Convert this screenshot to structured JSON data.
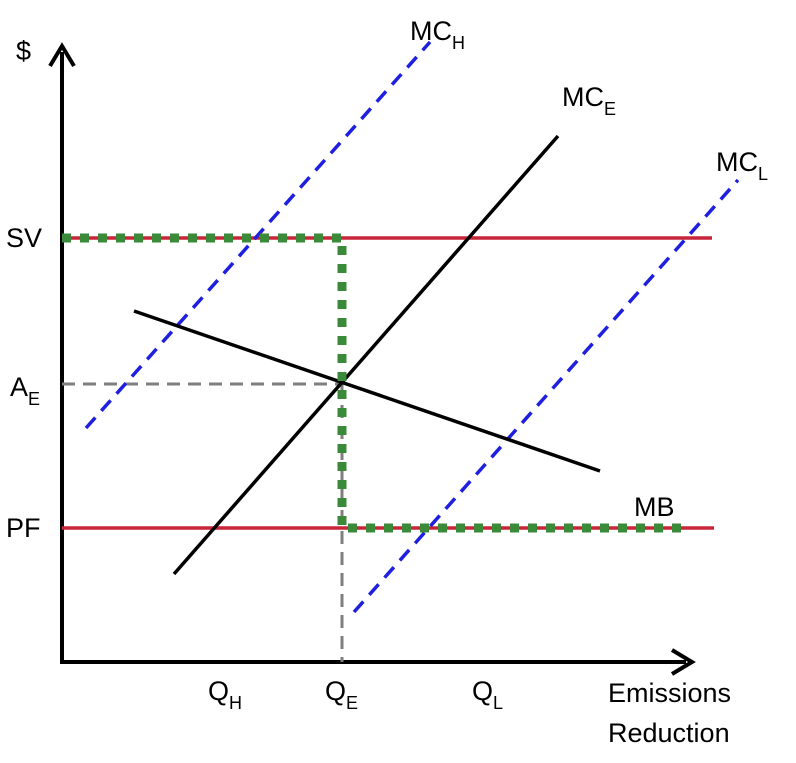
{
  "colors": {
    "axis": "#000000",
    "mc_expected": "#000000",
    "mc_high_low": "#1f1fe0",
    "price_lines": "#c8253a",
    "policy_path": "#3a8a3a",
    "guide": "#7f7f7f"
  },
  "axes": {
    "y_label": "$",
    "x_label_line1": "Emissions",
    "x_label_line2": "Reduction"
  },
  "y_ticks": [
    {
      "id": "sv",
      "main": "SV",
      "sub": ""
    },
    {
      "id": "ae",
      "main": "A",
      "sub": "E"
    },
    {
      "id": "pf",
      "main": "PF",
      "sub": ""
    }
  ],
  "x_ticks": [
    {
      "id": "qh",
      "main": "Q",
      "sub": "H"
    },
    {
      "id": "qe",
      "main": "Q",
      "sub": "E"
    },
    {
      "id": "ql",
      "main": "Q",
      "sub": "L"
    }
  ],
  "curves": [
    {
      "id": "mch",
      "main": "MC",
      "sub": "H",
      "style": "dashed-blue"
    },
    {
      "id": "mce",
      "main": "MC",
      "sub": "E",
      "style": "solid-black"
    },
    {
      "id": "mcl",
      "main": "MC",
      "sub": "L",
      "style": "dashed-blue"
    },
    {
      "id": "mb",
      "main": "MB",
      "sub": "",
      "style": "solid-black"
    }
  ]
}
